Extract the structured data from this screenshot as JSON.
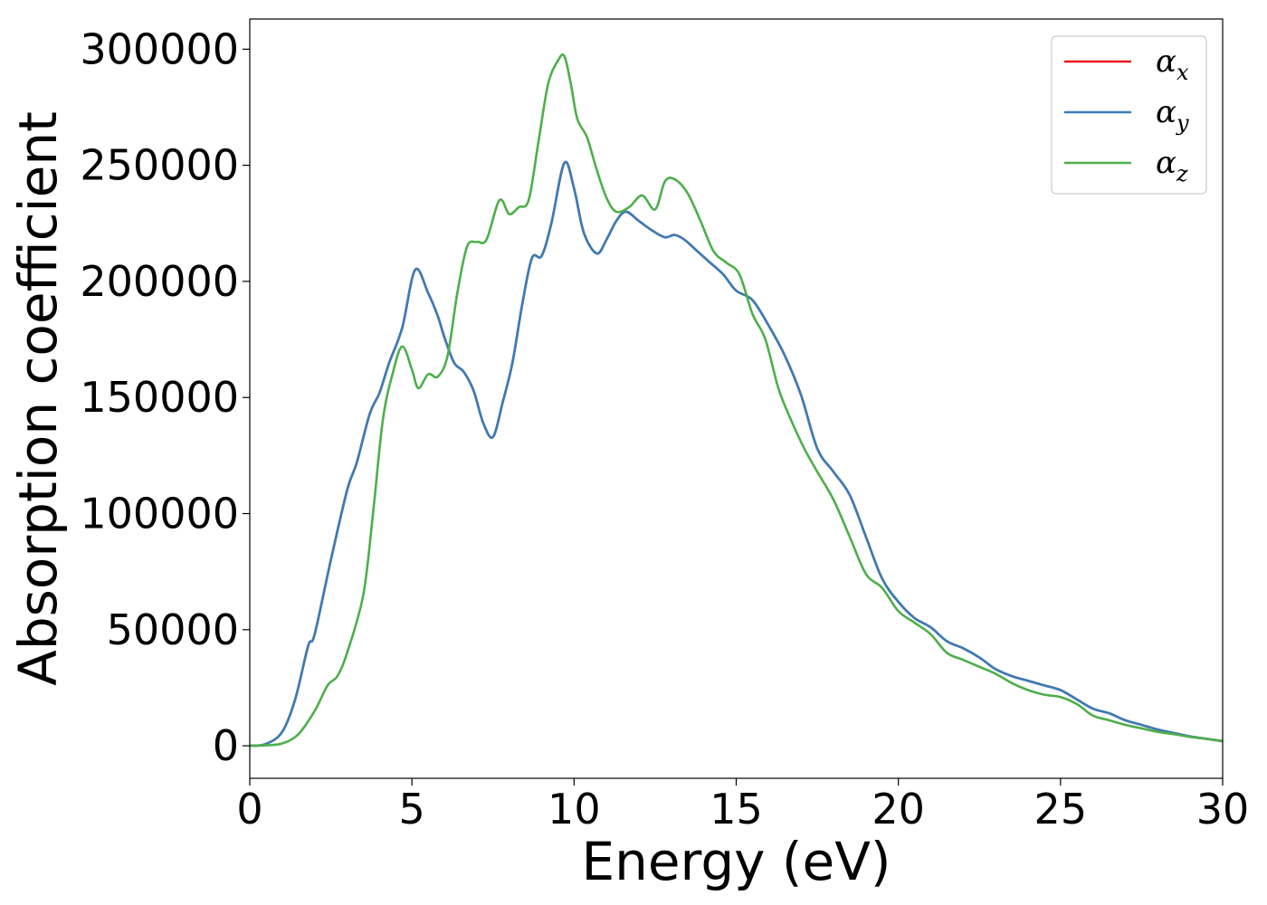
{
  "chart_data": {
    "type": "line",
    "xlabel": "Energy (eV)",
    "ylabel": "Absorption coefficient",
    "xlim": [
      0,
      30
    ],
    "ylim": [
      -14000,
      313000
    ],
    "xticks": [
      0,
      5,
      10,
      15,
      20,
      25,
      30
    ],
    "yticks": [
      0,
      50000,
      100000,
      150000,
      200000,
      250000,
      300000
    ],
    "grid": false,
    "legend_position": "top-right",
    "series": [
      {
        "name": "α",
        "subscript": "x",
        "color": "#e41a1c",
        "x": [
          0,
          0.5,
          1.0,
          1.4,
          1.8,
          2.0,
          2.5,
          3.0,
          3.3,
          3.7,
          4.0,
          4.3,
          4.7,
          5.1,
          5.5,
          5.8,
          6.0,
          6.3,
          6.6,
          6.9,
          7.2,
          7.5,
          7.8,
          8.1,
          8.4,
          8.7,
          9.0,
          9.3,
          9.7,
          10.0,
          10.3,
          10.7,
          11.0,
          11.3,
          11.6,
          12.0,
          12.4,
          12.8,
          13.1,
          13.4,
          13.8,
          14.2,
          14.6,
          15.0,
          15.5,
          16.0,
          16.5,
          17.0,
          17.5,
          18.0,
          18.5,
          19.0,
          19.5,
          20.0,
          20.5,
          21.0,
          21.5,
          22.0,
          22.5,
          23.0,
          23.5,
          24.0,
          24.5,
          25.0,
          25.5,
          26.0,
          26.5,
          27.0,
          27.5,
          28.0,
          28.5,
          29.0,
          29.5,
          30.0
        ],
        "y": [
          0,
          800,
          6000,
          20000,
          43000,
          48000,
          80000,
          110000,
          122000,
          143000,
          152000,
          165000,
          180000,
          205000,
          195000,
          185000,
          176000,
          165000,
          161000,
          153000,
          139000,
          133000,
          148000,
          165000,
          190000,
          210000,
          211000,
          225000,
          251000,
          240000,
          221000,
          212000,
          218000,
          226000,
          230000,
          226000,
          222000,
          219000,
          220000,
          218000,
          213000,
          208000,
          203000,
          196000,
          192000,
          181000,
          168000,
          151000,
          128000,
          118000,
          108000,
          90000,
          72000,
          62000,
          55000,
          51000,
          45000,
          42000,
          38000,
          33000,
          30000,
          28000,
          26000,
          24000,
          20000,
          16000,
          14000,
          11000,
          9000,
          7000,
          5500,
          4000,
          3000,
          2000
        ]
      },
      {
        "name": "α",
        "subscript": "y",
        "color": "#377eb8",
        "x": [
          0,
          0.5,
          1.0,
          1.4,
          1.8,
          2.0,
          2.5,
          3.0,
          3.3,
          3.7,
          4.0,
          4.3,
          4.7,
          5.1,
          5.5,
          5.8,
          6.0,
          6.3,
          6.6,
          6.9,
          7.2,
          7.5,
          7.8,
          8.1,
          8.4,
          8.7,
          9.0,
          9.3,
          9.7,
          10.0,
          10.3,
          10.7,
          11.0,
          11.3,
          11.6,
          12.0,
          12.4,
          12.8,
          13.1,
          13.4,
          13.8,
          14.2,
          14.6,
          15.0,
          15.5,
          16.0,
          16.5,
          17.0,
          17.5,
          18.0,
          18.5,
          19.0,
          19.5,
          20.0,
          20.5,
          21.0,
          21.5,
          22.0,
          22.5,
          23.0,
          23.5,
          24.0,
          24.5,
          25.0,
          25.5,
          26.0,
          26.5,
          27.0,
          27.5,
          28.0,
          28.5,
          29.0,
          29.5,
          30.0
        ],
        "y": [
          0,
          800,
          6000,
          20000,
          43000,
          48000,
          80000,
          110000,
          122000,
          143000,
          152000,
          165000,
          180000,
          205000,
          195000,
          185000,
          176000,
          165000,
          161000,
          153000,
          139000,
          133000,
          148000,
          165000,
          190000,
          210000,
          211000,
          225000,
          251000,
          240000,
          221000,
          212000,
          218000,
          226000,
          230000,
          226000,
          222000,
          219000,
          220000,
          218000,
          213000,
          208000,
          203000,
          196000,
          192000,
          181000,
          168000,
          151000,
          128000,
          118000,
          108000,
          90000,
          72000,
          62000,
          55000,
          51000,
          45000,
          42000,
          38000,
          33000,
          30000,
          28000,
          26000,
          24000,
          20000,
          16000,
          14000,
          11000,
          9000,
          7000,
          5500,
          4000,
          3000,
          2000
        ]
      },
      {
        "name": "α",
        "subscript": "z",
        "color": "#4daf4a",
        "x": [
          0,
          0.5,
          1.0,
          1.5,
          2.0,
          2.4,
          2.7,
          3.0,
          3.5,
          3.8,
          4.1,
          4.4,
          4.7,
          5.0,
          5.2,
          5.5,
          5.8,
          6.1,
          6.4,
          6.7,
          7.0,
          7.3,
          7.7,
          8.0,
          8.3,
          8.6,
          8.9,
          9.2,
          9.5,
          9.7,
          9.9,
          10.1,
          10.4,
          10.7,
          11.0,
          11.3,
          11.7,
          12.1,
          12.5,
          12.8,
          13.1,
          13.5,
          13.9,
          14.3,
          14.7,
          15.1,
          15.5,
          15.9,
          16.3,
          16.7,
          17.1,
          17.5,
          18.0,
          18.5,
          19.0,
          19.5,
          20.0,
          20.5,
          21.0,
          21.5,
          22.0,
          22.5,
          23.0,
          23.5,
          24.0,
          24.5,
          25.0,
          25.5,
          26.0,
          26.5,
          27.0,
          27.5,
          28.0,
          28.5,
          29.0,
          29.5,
          30.0
        ],
        "y": [
          0,
          200,
          1000,
          5000,
          15000,
          26000,
          30000,
          40000,
          65000,
          100000,
          140000,
          160000,
          172000,
          162000,
          154000,
          160000,
          159000,
          168000,
          195000,
          215000,
          217000,
          218000,
          235000,
          229000,
          232000,
          235000,
          260000,
          285000,
          295000,
          297000,
          285000,
          270000,
          262000,
          248000,
          236000,
          230000,
          232000,
          237000,
          231000,
          243000,
          244000,
          238000,
          226000,
          213000,
          208000,
          203000,
          186000,
          175000,
          154000,
          140000,
          128000,
          118000,
          106000,
          90000,
          74000,
          68000,
          58000,
          53000,
          48000,
          40000,
          37000,
          34000,
          31000,
          27000,
          24000,
          22000,
          21000,
          18000,
          13000,
          11000,
          9000,
          7500,
          6000,
          5000,
          3800,
          3000,
          2000
        ]
      }
    ]
  }
}
